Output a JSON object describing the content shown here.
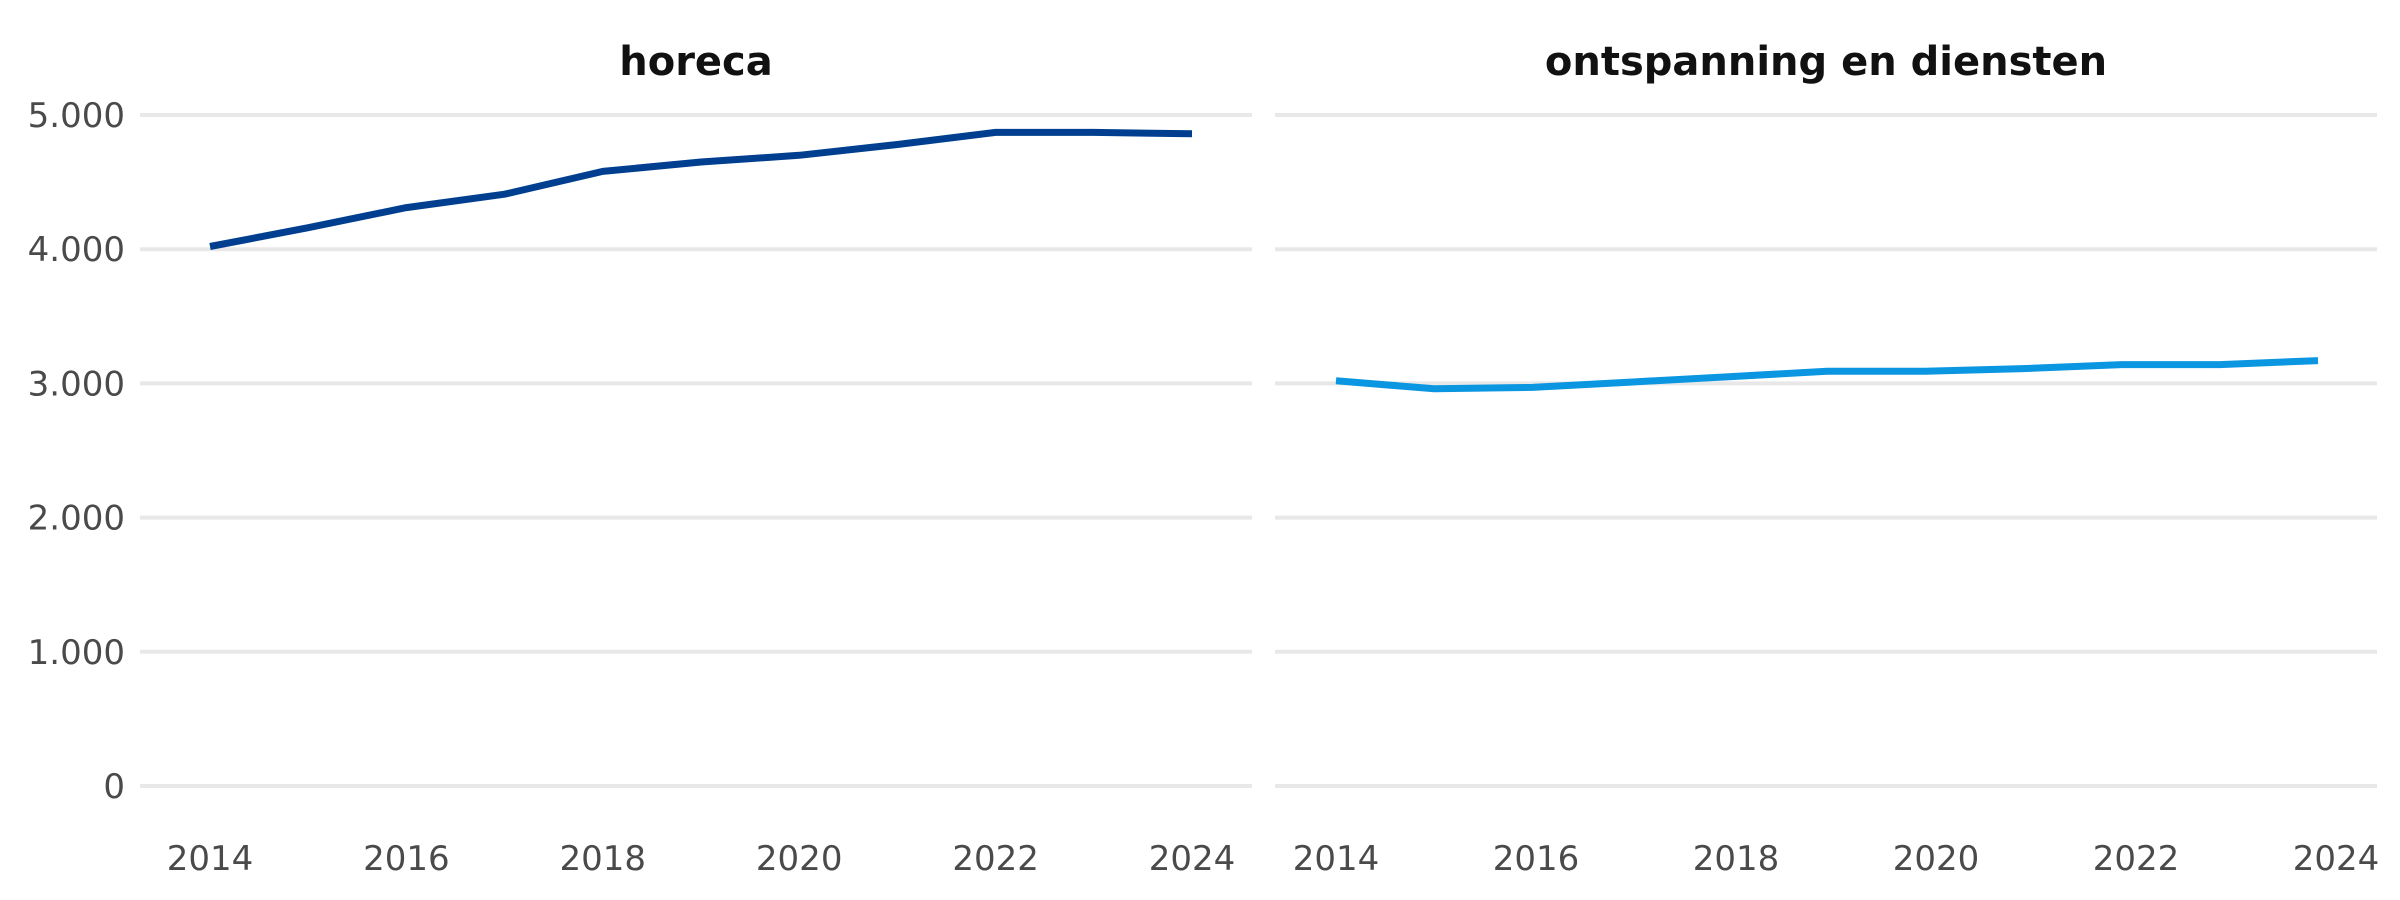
{
  "chart_data": {
    "type": "line",
    "layout": "small-multiples",
    "grid": true,
    "y_ticks": [
      0,
      1000,
      2000,
      3000,
      4000,
      5000
    ],
    "y_tick_labels": [
      "0",
      "1.000",
      "2.000",
      "3.000",
      "4.000",
      "5.000"
    ],
    "ylim": [
      0,
      5000
    ],
    "x_ticks": [
      2014,
      2016,
      2018,
      2020,
      2022,
      2024
    ],
    "x_tick_labels": [
      "2014",
      "2016",
      "2018",
      "2020",
      "2022",
      "2024"
    ],
    "xlim": [
      2014,
      2024
    ],
    "panels": [
      {
        "title": "horeca",
        "color": "#003f8f",
        "x": [
          2014,
          2015,
          2016,
          2017,
          2018,
          2019,
          2020,
          2021,
          2022,
          2023,
          2024
        ],
        "y": [
          4020,
          4160,
          4310,
          4410,
          4580,
          4650,
          4700,
          4780,
          4870,
          4870,
          4860
        ]
      },
      {
        "title": "ontspanning en diensten",
        "color": "#0a96e0",
        "x": [
          2014,
          2015,
          2016,
          2017,
          2018,
          2019,
          2020,
          2021,
          2022,
          2023,
          2024
        ],
        "y": [
          3020,
          2960,
          2970,
          3010,
          3050,
          3090,
          3090,
          3110,
          3140,
          3140,
          3170
        ]
      }
    ]
  }
}
